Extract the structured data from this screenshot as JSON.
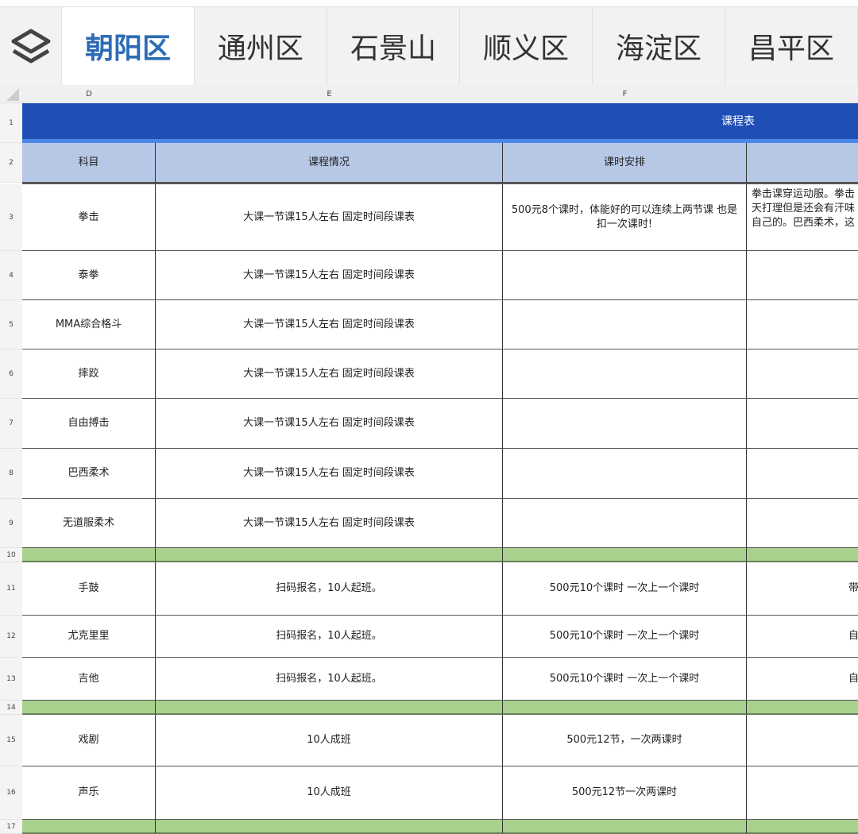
{
  "tabs": {
    "icon": "layers-icon",
    "items": [
      "朝阳区",
      "通州区",
      "石景山",
      "顺义区",
      "海淀区",
      "昌平区"
    ],
    "active": 0
  },
  "columns": [
    "D",
    "E",
    "F"
  ],
  "title": "课程表",
  "headers": [
    "科目",
    "课程情况",
    "课时安排",
    ""
  ],
  "rows": [
    {
      "num": "3",
      "subject": "拳击",
      "info": "大课一节课15人左右 固定时间段课表",
      "schedule": "500元8个课时，体能好的可以连续上两节课 也是扣一次课时!",
      "note": "拳击课穿运动服。拳击\n天打理但是还会有汗味\n自己的。巴西柔术，这"
    },
    {
      "num": "4",
      "subject": "泰拳",
      "info": "大课一节课15人左右 固定时间段课表",
      "schedule": "",
      "note": ""
    },
    {
      "num": "5",
      "subject": "MMA综合格斗",
      "info": "大课一节课15人左右 固定时间段课表",
      "schedule": "",
      "note": ""
    },
    {
      "num": "6",
      "subject": "摔跤",
      "info": "大课一节课15人左右 固定时间段课表",
      "schedule": "",
      "note": ""
    },
    {
      "num": "7",
      "subject": "自由搏击",
      "info": "大课一节课15人左右 固定时间段课表",
      "schedule": "",
      "note": ""
    },
    {
      "num": "8",
      "subject": "巴西柔术",
      "info": "大课一节课15人左右 固定时间段课表",
      "schedule": "",
      "note": ""
    },
    {
      "num": "9",
      "subject": "无道服柔术",
      "info": "大课一节课15人左右 固定时间段课表",
      "schedule": "",
      "note": ""
    },
    {
      "num": "10",
      "sep": true
    },
    {
      "num": "11",
      "subject": "手鼓",
      "info": "扫码报名，10人起班。",
      "schedule": "500元10个课时 一次上一个课时",
      "note": "带纸"
    },
    {
      "num": "12",
      "subject": "尤克里里",
      "info": "扫码报名，10人起班。",
      "schedule": "500元10个课时 一次上一个课时",
      "note": "自己"
    },
    {
      "num": "13",
      "subject": "吉他",
      "info": "扫码报名，10人起班。",
      "schedule": "500元10个课时 一次上一个课时",
      "note": "自己"
    },
    {
      "num": "14",
      "sep": true
    },
    {
      "num": "15",
      "subject": "戏剧",
      "info": "10人成班",
      "schedule": "500元12节，一次两课时",
      "note": ""
    },
    {
      "num": "16",
      "subject": "声乐",
      "info": "10人成班",
      "schedule": "500元12节一次两课时",
      "note": ""
    },
    {
      "num": "17",
      "sep": true
    }
  ],
  "colors": {
    "accent": "#2c6cb5",
    "title_bar": "#1f4fb5",
    "header": "#b7c7e6",
    "separator": "#a9d18e"
  }
}
